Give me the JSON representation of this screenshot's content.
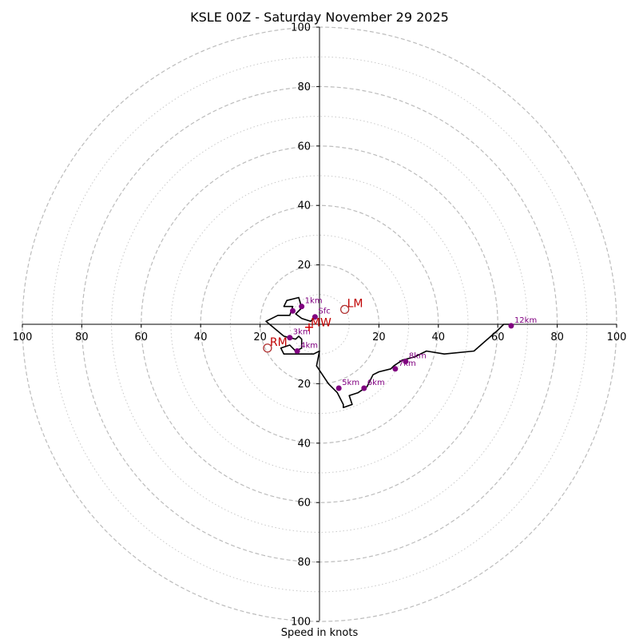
{
  "chart_data": {
    "type": "scatter",
    "subtype": "hodograph",
    "title": "KSLE 00Z - Saturday November 29 2025",
    "xlabel": "Speed in knots",
    "xlim": [
      -100,
      100
    ],
    "ylim": [
      -100,
      100
    ],
    "ring_major": [
      20,
      40,
      60,
      80,
      100
    ],
    "ring_minor": [
      10,
      30,
      50,
      70,
      90
    ],
    "tick_labels_x": [
      "100",
      "80",
      "60",
      "40",
      "20",
      "20",
      "40",
      "60",
      "80",
      "100"
    ],
    "tick_values_x": [
      -100,
      -80,
      -60,
      -40,
      -20,
      20,
      40,
      60,
      80,
      100
    ],
    "tick_labels_y": [
      "100",
      "80",
      "60",
      "40",
      "20",
      "20",
      "40",
      "60",
      "80",
      "100"
    ],
    "tick_values_y": [
      100,
      80,
      60,
      40,
      20,
      -20,
      -40,
      -60,
      -80,
      -100
    ],
    "trace": {
      "name": "wind profile",
      "color": "#000000",
      "u": [
        -1.5,
        -3,
        -6,
        -8,
        -6,
        -7,
        -11,
        -12,
        -9,
        -10,
        -14,
        -18,
        -12,
        -8,
        -7,
        -6,
        -6,
        -8,
        -9,
        -10,
        -13,
        -12,
        -8,
        -5,
        -2,
        0,
        -1,
        1,
        3,
        6,
        8,
        8,
        11,
        10,
        13,
        16,
        18,
        20,
        24,
        25,
        28,
        32,
        36,
        42,
        52,
        60,
        62,
        64
      ],
      "v": [
        2.5,
        1,
        2,
        3.5,
        5.5,
        9,
        8,
        6,
        6,
        3,
        3,
        1,
        -4,
        -5,
        -4,
        -5,
        -8,
        -9,
        -8,
        -7,
        -8,
        -10,
        -10,
        -10,
        -10,
        -9,
        -14,
        -17,
        -20,
        -23,
        -27,
        -28,
        -27,
        -24,
        -23,
        -21,
        -17,
        -16,
        -15,
        -14,
        -12,
        -11,
        -9,
        -10,
        -9,
        -2,
        0,
        0
      ]
    },
    "height_markers": [
      {
        "label": "Sfc",
        "u": -1.5,
        "v": 2.5
      },
      {
        "label": "1km",
        "u": -6,
        "v": 6
      },
      {
        "label": "",
        "u": -9,
        "v": 4.5
      },
      {
        "label": "3km",
        "u": -10,
        "v": -4.5
      },
      {
        "label": "4km",
        "u": -7.5,
        "v": -9
      },
      {
        "label": "5km",
        "u": 6.5,
        "v": -21.5
      },
      {
        "label": "6km",
        "u": 15,
        "v": -21.5
      },
      {
        "label": "7km",
        "u": 25.5,
        "v": -15
      },
      {
        "label": "8km",
        "u": 29,
        "v": -12.5
      },
      {
        "label": "12km",
        "u": 64.5,
        "v": -0.5
      }
    ],
    "motion_markers": [
      {
        "label": "LM",
        "u": 8.5,
        "v": 5
      },
      {
        "label": "RM",
        "u": -17.5,
        "v": -8
      },
      {
        "label": "MW",
        "u": -3.5,
        "v": -1
      }
    ]
  }
}
